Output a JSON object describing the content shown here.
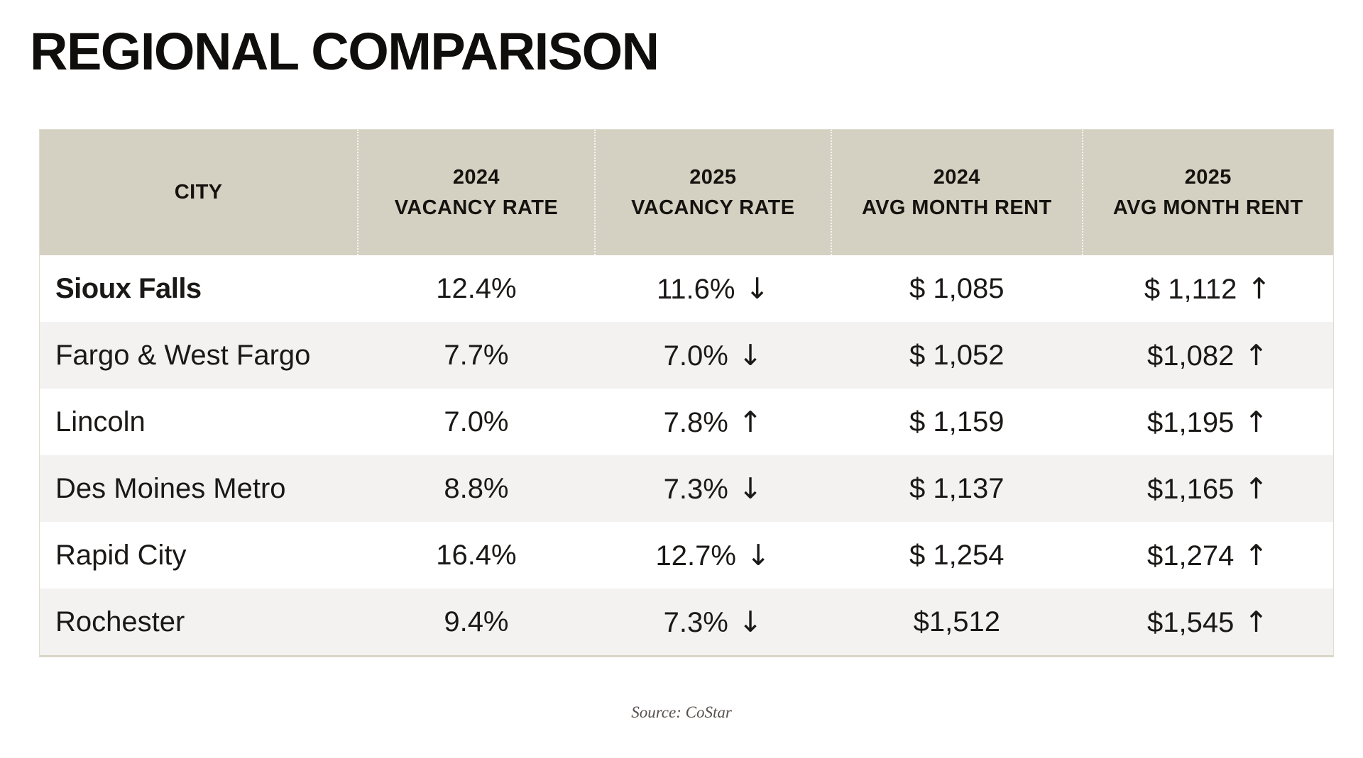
{
  "page": {
    "title": "REGIONAL COMPARISON",
    "source": "Source: CoStar"
  },
  "colors": {
    "title_text": "#0f0e0c",
    "header_bg": "#d5d1c2",
    "row_bg": "#ffffff",
    "row_alt_bg": "#f4f2f0",
    "body_text": "#1b1917",
    "source_text": "#57514e",
    "table_border": "#e0dcd0"
  },
  "table": {
    "columns": [
      {
        "id": "city",
        "line1": "CITY",
        "line2": ""
      },
      {
        "id": "vacancy_2024",
        "line1": "2024",
        "line2": "VACANCY RATE"
      },
      {
        "id": "vacancy_2025",
        "line1": "2025",
        "line2": "VACANCY RATE"
      },
      {
        "id": "rent_2024",
        "line1": "2024",
        "line2": "AVG MONTH RENT"
      },
      {
        "id": "rent_2025",
        "line1": "2025",
        "line2": "AVG MONTH RENT"
      }
    ],
    "rows": [
      {
        "city": "Sioux Falls",
        "vacancy_2024": "12.4%",
        "vacancy_2025": "11.6%",
        "vacancy_2025_trend": "down",
        "vacancy_2025_arrow": "↓",
        "rent_2024": "$ 1,085",
        "rent_2025": "$ 1,112",
        "rent_2025_trend": "up",
        "rent_2025_arrow": "↑"
      },
      {
        "city": "Fargo & West Fargo",
        "vacancy_2024": "7.7%",
        "vacancy_2025": "7.0%",
        "vacancy_2025_trend": "down",
        "vacancy_2025_arrow": "↓",
        "rent_2024": "$ 1,052",
        "rent_2025": "$1,082",
        "rent_2025_trend": "up",
        "rent_2025_arrow": "↑"
      },
      {
        "city": "Lincoln",
        "vacancy_2024": "7.0%",
        "vacancy_2025": "7.8%",
        "vacancy_2025_trend": "up",
        "vacancy_2025_arrow": "↑",
        "rent_2024": "$ 1,159",
        "rent_2025": "$1,195",
        "rent_2025_trend": "up",
        "rent_2025_arrow": "↑"
      },
      {
        "city": "Des Moines Metro",
        "vacancy_2024": "8.8%",
        "vacancy_2025": "7.3%",
        "vacancy_2025_trend": "down",
        "vacancy_2025_arrow": "↓",
        "rent_2024": "$ 1,137",
        "rent_2025": "$1,165",
        "rent_2025_trend": "up",
        "rent_2025_arrow": "↑"
      },
      {
        "city": "Rapid City",
        "vacancy_2024": "16.4%",
        "vacancy_2025": "12.7%",
        "vacancy_2025_trend": "down",
        "vacancy_2025_arrow": "↓",
        "rent_2024": "$ 1,254",
        "rent_2025": "$1,274",
        "rent_2025_trend": "up",
        "rent_2025_arrow": "↑"
      },
      {
        "city": "Rochester",
        "vacancy_2024": "9.4%",
        "vacancy_2025": "7.3%",
        "vacancy_2025_trend": "down",
        "vacancy_2025_arrow": "↓",
        "rent_2024": "$1,512",
        "rent_2025": "$1,545",
        "rent_2025_trend": "up",
        "rent_2025_arrow": "↑"
      }
    ]
  },
  "chart_data": {
    "type": "table",
    "title": "REGIONAL COMPARISON",
    "columns": [
      "CITY",
      "2024 VACANCY RATE",
      "2025 VACANCY RATE",
      "2024 AVG MONTH RENT",
      "2025 AVG MONTH RENT"
    ],
    "rows": [
      [
        "Sioux Falls",
        12.4,
        11.6,
        1085,
        1112
      ],
      [
        "Fargo & West Fargo",
        7.7,
        7.0,
        1052,
        1082
      ],
      [
        "Lincoln",
        7.0,
        7.8,
        1159,
        1195
      ],
      [
        "Des Moines Metro",
        8.8,
        7.3,
        1137,
        1165
      ],
      [
        "Rapid City",
        16.4,
        12.7,
        1254,
        1274
      ],
      [
        "Rochester",
        9.4,
        7.3,
        1512,
        1545
      ]
    ],
    "trends": {
      "vacancy_2025": [
        "down",
        "down",
        "up",
        "down",
        "down",
        "down"
      ],
      "rent_2025": [
        "up",
        "up",
        "up",
        "up",
        "up",
        "up"
      ]
    },
    "units": {
      "vacancy": "%",
      "rent": "USD per month"
    },
    "source": "Source: CoStar"
  }
}
